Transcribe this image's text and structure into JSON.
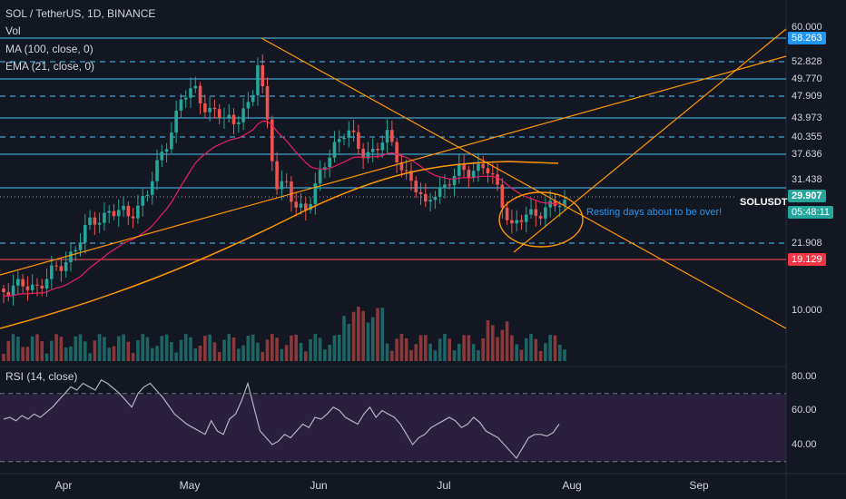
{
  "chart_data": {
    "type": "candlestick",
    "title": "SOL / TetherUS, 1D, BINANCE",
    "legend": [
      "Vol",
      "MA (100, close, 0)",
      "EMA (21, close, 0)"
    ],
    "x_ticks": [
      "Apr",
      "May",
      "Jun",
      "Jul",
      "Aug",
      "Sep"
    ],
    "price_ticks": [
      "60.000",
      "52.828",
      "49.770",
      "47.909",
      "43.973",
      "40.355",
      "37.636",
      "31.438",
      "21.908",
      "10.000"
    ],
    "last_price": "29.907",
    "symbol_tag": "SOLUSDT",
    "countdown": "05:48:11",
    "highlighted_levels": [
      "58.263",
      "19.129"
    ],
    "annotation": "Resting days about to be over!",
    "rsi": {
      "label": "RSI (14, close)",
      "ticks": [
        "80.00",
        "60.00",
        "40.00"
      ],
      "values": [
        55,
        56,
        54,
        57,
        55,
        58,
        56,
        59,
        62,
        66,
        70,
        74,
        72,
        76,
        74,
        72,
        78,
        76,
        73,
        70,
        66,
        62,
        70,
        74,
        76,
        72,
        68,
        63,
        58,
        55,
        52,
        50,
        48,
        46,
        54,
        48,
        46,
        55,
        58,
        66,
        76,
        62,
        48,
        44,
        40,
        42,
        46,
        44,
        48,
        52,
        50,
        56,
        55,
        58,
        62,
        60,
        56,
        54,
        52,
        58,
        62,
        56,
        60,
        58,
        56,
        52,
        46,
        40,
        44,
        46,
        50,
        52,
        54,
        56,
        54,
        50,
        52,
        56,
        53,
        48,
        46,
        44,
        40,
        36,
        32,
        38,
        44,
        46,
        46,
        45,
        47,
        52
      ]
    }
  },
  "colors": {
    "up": "#26a69a",
    "down": "#ef5350",
    "level": "#4fc3f7",
    "orange": "#ff9800",
    "ema": "#e91e63",
    "rsi": "#b2b5be",
    "badge_blue": "#2196f3",
    "badge_red": "#f23645",
    "badge_teal": "#26a69a"
  }
}
